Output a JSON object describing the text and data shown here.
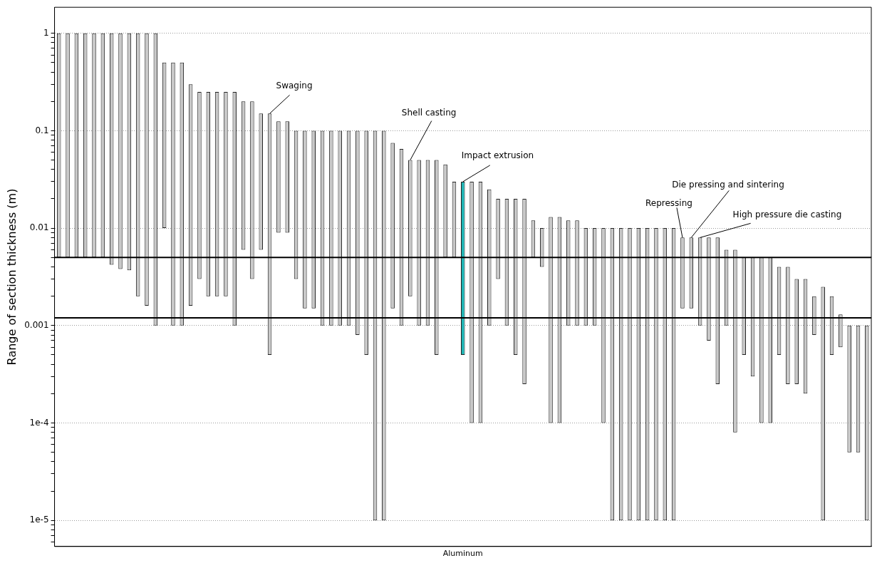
{
  "chart_data": {
    "type": "bar",
    "ylabel": "Range of section thickness (m)",
    "xlabel": "Aluminum",
    "categories": [
      null,
      null,
      null,
      null,
      null,
      null,
      null,
      null,
      null,
      null,
      null,
      null,
      null,
      null,
      null,
      null,
      null,
      null,
      null,
      null,
      null,
      null,
      null,
      null,
      null,
      null,
      null,
      null,
      null,
      null,
      null,
      null,
      null,
      null,
      null,
      null,
      null,
      null,
      null,
      null,
      null,
      null,
      null,
      null,
      null,
      null,
      null,
      null,
      null,
      null,
      null,
      null,
      null,
      null,
      null,
      null,
      null,
      null,
      null,
      null,
      null,
      null,
      null,
      null,
      null,
      null,
      null,
      null,
      null,
      null,
      null,
      null,
      null,
      null,
      null,
      null,
      null,
      null,
      null,
      null,
      null,
      null,
      null,
      null,
      null,
      null,
      null,
      null,
      null,
      null,
      null,
      null,
      null
    ],
    "base": [
      0.005,
      0.005,
      0.005,
      0.005,
      0.005,
      0.005,
      0.0042,
      0.0038,
      0.0037,
      0.002,
      0.0016,
      0.001,
      0.01,
      0.001,
      0.001,
      0.0016,
      0.003,
      0.002,
      0.002,
      0.002,
      0.001,
      0.006,
      0.003,
      0.006,
      0.0005,
      0.009,
      0.009,
      0.003,
      0.0015,
      0.0015,
      0.001,
      0.001,
      0.001,
      0.001,
      0.0008,
      0.0005,
      1e-05,
      1e-05,
      0.0015,
      0.001,
      0.002,
      0.001,
      0.001,
      0.0005,
      0.005,
      0.005,
      0.0005,
      0.0001,
      0.0001,
      0.001,
      0.003,
      0.001,
      0.0005,
      0.00025,
      0.005,
      0.004,
      0.0001,
      0.0001,
      0.001,
      0.001,
      0.001,
      0.001,
      0.0001,
      1e-05,
      1e-05,
      1e-05,
      1e-05,
      1e-05,
      1e-05,
      1e-05,
      1e-05,
      0.0015,
      0.0015,
      0.001,
      0.0007,
      0.00025,
      0.001,
      8e-05,
      0.0005,
      0.0003,
      0.0001,
      0.0001,
      0.0005,
      0.00025,
      0.00025,
      0.0002,
      0.0008,
      1e-05,
      0.0005,
      0.0006,
      5e-05,
      5e-05,
      1e-05
    ],
    "values": [
      0.995,
      0.995,
      0.995,
      0.995,
      0.995,
      0.995,
      0.9958,
      0.9962,
      0.9963,
      0.998,
      0.9984,
      0.999,
      0.49,
      0.499,
      0.499,
      0.2984,
      0.247,
      0.248,
      0.248,
      0.248,
      0.249,
      0.194,
      0.197,
      0.144,
      0.1495,
      0.116,
      0.116,
      0.097,
      0.0985,
      0.0985,
      0.099,
      0.099,
      0.099,
      0.099,
      0.0992,
      0.0995,
      0.09999,
      0.09999,
      0.0735,
      0.064,
      0.048,
      0.049,
      0.049,
      0.0495,
      0.04,
      0.025,
      0.0295,
      0.0299,
      0.0299,
      0.024,
      0.017,
      0.019,
      0.0195,
      0.01975,
      0.007,
      0.006,
      0.0129,
      0.0129,
      0.011,
      0.011,
      0.009,
      0.009,
      0.0099,
      0.00999,
      0.00999,
      0.00999,
      0.00999,
      0.00999,
      0.00999,
      0.00999,
      0.00999,
      0.0065,
      0.0065,
      0.007,
      0.0073,
      0.00775,
      0.005,
      0.00592,
      0.0045,
      0.0047,
      0.0049,
      0.0049,
      0.0035,
      0.00375,
      0.00275,
      0.0028,
      0.0012,
      0.00249,
      0.0015,
      0.0007,
      0.00095,
      0.00095,
      0.00099
    ],
    "colors": [
      "#c8c8c8",
      "#c8c8c8",
      "#c8c8c8",
      "#c8c8c8",
      "#c8c8c8",
      "#c8c8c8",
      "#c8c8c8",
      "#c8c8c8",
      "#c8c8c8",
      "#c8c8c8",
      "#c8c8c8",
      "#c8c8c8",
      "#c8c8c8",
      "#c8c8c8",
      "#c8c8c8",
      "#c8c8c8",
      "#c8c8c8",
      "#c8c8c8",
      "#c8c8c8",
      "#c8c8c8",
      "#c8c8c8",
      "#c8c8c8",
      "#c8c8c8",
      "#c8c8c8",
      "#c8c8c8",
      "#c8c8c8",
      "#c8c8c8",
      "#c8c8c8",
      "#c8c8c8",
      "#c8c8c8",
      "#c8c8c8",
      "#c8c8c8",
      "#c8c8c8",
      "#c8c8c8",
      "#c8c8c8",
      "#c8c8c8",
      "#c8c8c8",
      "#c8c8c8",
      "#c8c8c8",
      "#c8c8c8",
      "#c8c8c8",
      "#c8c8c8",
      "#c8c8c8",
      "#c8c8c8",
      "#c8c8c8",
      "#c8c8c8",
      "#1fb5b5",
      "#c8c8c8",
      "#c8c8c8",
      "#c8c8c8",
      "#c8c8c8",
      "#c8c8c8",
      "#c8c8c8",
      "#c8c8c8",
      "#c8c8c8",
      "#c8c8c8",
      "#c8c8c8",
      "#c8c8c8",
      "#c8c8c8",
      "#c8c8c8",
      "#c8c8c8",
      "#c8c8c8",
      "#c8c8c8",
      "#c8c8c8",
      "#c8c8c8",
      "#c8c8c8",
      "#c8c8c8",
      "#c8c8c8",
      "#c8c8c8",
      "#c8c8c8",
      "#c8c8c8",
      "#c8c8c8",
      "#c8c8c8",
      "#c8c8c8",
      "#c8c8c8",
      "#c8c8c8",
      "#c8c8c8",
      "#c8c8c8",
      "#c8c8c8",
      "#c8c8c8",
      "#c8c8c8",
      "#c8c8c8",
      "#c8c8c8",
      "#c8c8c8",
      "#c8c8c8",
      "#c8c8c8",
      "#c8c8c8",
      "#c8c8c8",
      "#c8c8c8",
      "#c8c8c8",
      "#c8c8c8",
      "#c8c8c8",
      "#c8c8c8"
    ],
    "log": "y",
    "ylim": [
      5.4e-06,
      1.85
    ],
    "yticks": [
      {
        "value": 6e-06,
        "label": null
      },
      {
        "value": 7e-06,
        "label": null
      },
      {
        "value": 8e-06,
        "label": null
      },
      {
        "value": 9e-06,
        "label": null
      },
      {
        "value": 1e-05,
        "label": "1e-5"
      },
      {
        "value": 2e-05,
        "label": null
      },
      {
        "value": 3e-05,
        "label": null
      },
      {
        "value": 4e-05,
        "label": null
      },
      {
        "value": 5e-05,
        "label": null
      },
      {
        "value": 6e-05,
        "label": null
      },
      {
        "value": 7e-05,
        "label": null
      },
      {
        "value": 8e-05,
        "label": null
      },
      {
        "value": 9e-05,
        "label": null
      },
      {
        "value": 0.0001,
        "label": "1e-4"
      },
      {
        "value": 0.0002,
        "label": null
      },
      {
        "value": 0.0003,
        "label": null
      },
      {
        "value": 0.0004,
        "label": null
      },
      {
        "value": 0.0005,
        "label": null
      },
      {
        "value": 0.0006,
        "label": null
      },
      {
        "value": 0.0007,
        "label": null
      },
      {
        "value": 0.0008,
        "label": null
      },
      {
        "value": 0.0009,
        "label": null
      },
      0.001,
      {
        "value": 0.002,
        "label": null
      },
      {
        "value": 0.003,
        "label": null
      },
      {
        "value": 0.004,
        "label": null
      },
      {
        "value": 0.005,
        "label": null
      },
      {
        "value": 0.006,
        "label": null
      },
      {
        "value": 0.007,
        "label": null
      },
      {
        "value": 0.008,
        "label": null
      },
      {
        "value": 0.009,
        "label": null
      },
      0.01,
      {
        "value": 0.02,
        "label": null
      },
      {
        "value": 0.03,
        "label": null
      },
      {
        "value": 0.04,
        "label": null
      },
      {
        "value": 0.05,
        "label": null
      },
      {
        "value": 0.06,
        "label": null
      },
      {
        "value": 0.07,
        "label": null
      },
      {
        "value": 0.08,
        "label": null
      },
      {
        "value": 0.09,
        "label": null
      },
      0.1,
      {
        "value": 0.2,
        "label": null
      },
      {
        "value": 0.3,
        "label": null
      },
      {
        "value": 0.4,
        "label": null
      },
      {
        "value": 0.5,
        "label": null
      },
      {
        "value": 0.6,
        "label": null
      },
      {
        "value": 0.7,
        "label": null
      },
      {
        "value": 0.8,
        "label": null
      },
      {
        "value": 0.9,
        "label": null
      },
      1
    ],
    "ref_lines": [
      {
        "axis": "y",
        "value": 0.005,
        "color": "#000000"
      },
      {
        "axis": "y",
        "value": 0.0012,
        "color": "#000000"
      }
    ],
    "annotations": [
      "Swaging",
      "Shell casting",
      "Impact extrusion",
      "Repressing",
      "Die pressing and sintering",
      "High pressure die casting"
    ],
    "grid": "y",
    "legend": false,
    "tick_labels": "y"
  }
}
